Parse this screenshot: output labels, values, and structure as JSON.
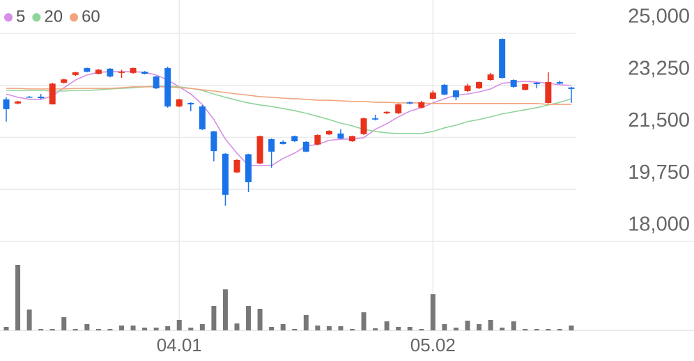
{
  "chart_data": {
    "type": "candlestick",
    "categories": [
      null,
      null,
      null,
      null,
      null,
      null,
      null,
      null,
      null,
      null,
      null,
      null,
      null,
      null,
      null,
      "04.01",
      null,
      null,
      null,
      null,
      null,
      null,
      null,
      null,
      null,
      null,
      null,
      null,
      null,
      null,
      null,
      null,
      null,
      null,
      null,
      null,
      null,
      "05.02",
      null,
      null,
      null,
      null,
      null,
      null,
      null,
      null,
      null,
      null,
      null,
      null
    ],
    "open": [
      22780,
      22640,
      22870,
      22870,
      22610,
      23340,
      23600,
      23830,
      23640,
      23810,
      23670,
      23670,
      23710,
      23550,
      23830,
      22540,
      22660,
      22540,
      21700,
      20950,
      20320,
      20930,
      20620,
      21440,
      21350,
      21540,
      21350,
      21260,
      21600,
      21630,
      21370,
      21610,
      22140,
      22310,
      22310,
      22680,
      22500,
      22800,
      23270,
      23080,
      23060,
      23150,
      23430,
      24810,
      23430,
      23100,
      23340,
      22660,
      23360,
      23180
    ],
    "high": [
      22850,
      22730,
      22890,
      22960,
      23340,
      23480,
      23710,
      23850,
      23800,
      23830,
      23780,
      23850,
      23730,
      23570,
      23880,
      22800,
      22680,
      22590,
      21720,
      20970,
      20760,
      20950,
      21560,
      21460,
      21400,
      21560,
      21370,
      21600,
      21740,
      21770,
      21560,
      22170,
      22260,
      22380,
      22640,
      22710,
      22730,
      23080,
      23290,
      23100,
      23310,
      23380,
      23670,
      24830,
      23450,
      23310,
      23360,
      23690,
      23410,
      23200
    ],
    "low": [
      22030,
      22610,
      22850,
      22780,
      22610,
      23310,
      23570,
      23690,
      23620,
      23520,
      23500,
      23640,
      23620,
      23130,
      22500,
      22520,
      22380,
      21750,
      20690,
      19200,
      20300,
      19660,
      20600,
      20480,
      21260,
      21350,
      21000,
      21230,
      21580,
      21440,
      21350,
      21580,
      22070,
      22280,
      22280,
      22610,
      22470,
      22780,
      22920,
      22750,
      23030,
      23130,
      23410,
      23480,
      23170,
      23080,
      23150,
      22640,
      23290,
      22660
    ],
    "close": [
      22450,
      22710,
      22850,
      22820,
      23310,
      23450,
      23690,
      23710,
      23780,
      23550,
      23710,
      23830,
      23640,
      23150,
      22540,
      22780,
      22610,
      21770,
      21040,
      19570,
      20740,
      19990,
      21540,
      21020,
      21280,
      21370,
      21020,
      21580,
      21720,
      21460,
      21540,
      22140,
      22100,
      22360,
      22610,
      22640,
      22680,
      23010,
      22940,
      22850,
      23240,
      23360,
      23620,
      23500,
      23200,
      23290,
      23290,
      23360,
      23310,
      23130
    ],
    "up_color": "#e8321c",
    "down_color": "#1a73e8",
    "series": [
      {
        "name": "5",
        "color": "#d68fe6",
        "values": [
          22960,
          22850,
          22780,
          22780,
          22890,
          23170,
          23430,
          23600,
          23690,
          23710,
          23710,
          23710,
          23690,
          23600,
          23430,
          23200,
          22960,
          22610,
          22100,
          21440,
          20970,
          20550,
          20550,
          20550,
          20790,
          20970,
          21210,
          21260,
          21400,
          21440,
          21440,
          21490,
          21770,
          21960,
          22190,
          22380,
          22500,
          22660,
          22800,
          22920,
          22960,
          23030,
          23130,
          23320,
          23360,
          23390,
          23360,
          23320,
          23270,
          23250
        ]
      },
      {
        "name": "20",
        "color": "#8fd49a",
        "values": [
          23080,
          23080,
          23080,
          23080,
          23060,
          23060,
          23080,
          23080,
          23100,
          23130,
          23150,
          23170,
          23200,
          23220,
          23220,
          23200,
          23150,
          23080,
          22960,
          22850,
          22750,
          22660,
          22590,
          22540,
          22470,
          22400,
          22310,
          22210,
          22100,
          21980,
          21890,
          21770,
          21700,
          21650,
          21630,
          21630,
          21630,
          21700,
          21820,
          21910,
          22030,
          22100,
          22190,
          22290,
          22360,
          22430,
          22500,
          22590,
          22680,
          22800
        ]
      },
      {
        "name": "60",
        "color": "#f2a47e",
        "values": [
          23150,
          23150,
          23130,
          23130,
          23130,
          23130,
          23150,
          23150,
          23150,
          23150,
          23170,
          23200,
          23200,
          23200,
          23200,
          23170,
          23150,
          23100,
          23060,
          23010,
          22960,
          22920,
          22870,
          22850,
          22820,
          22800,
          22780,
          22750,
          22750,
          22730,
          22710,
          22710,
          22680,
          22680,
          22660,
          22660,
          22660,
          22640,
          22640,
          22640,
          22640,
          22640,
          22640,
          22640,
          22640,
          22640,
          22640,
          22610,
          22610,
          22610
        ]
      }
    ],
    "ylim": [
      18000,
      25000
    ],
    "yticks": [
      {
        "value": 25000,
        "label": "25,000"
      },
      {
        "value": 23250,
        "label": "23,250"
      },
      {
        "value": 21500,
        "label": "21,500"
      },
      {
        "value": 19750,
        "label": "19,750"
      },
      {
        "value": 18000,
        "label": "18,000"
      }
    ],
    "grid": true,
    "volume": {
      "color": "#777777",
      "ylim": [
        0,
        128
      ],
      "values": [
        5,
        94,
        30,
        2,
        2,
        19,
        2,
        9,
        2,
        2,
        7,
        7,
        4,
        4,
        6,
        15,
        4,
        9,
        35,
        59,
        10,
        35,
        31,
        5,
        9,
        2,
        22,
        7,
        6,
        6,
        2,
        26,
        3,
        13,
        5,
        5,
        2,
        52,
        9,
        4,
        14,
        9,
        15,
        4,
        13,
        2,
        2,
        2,
        2,
        7
      ]
    }
  }
}
